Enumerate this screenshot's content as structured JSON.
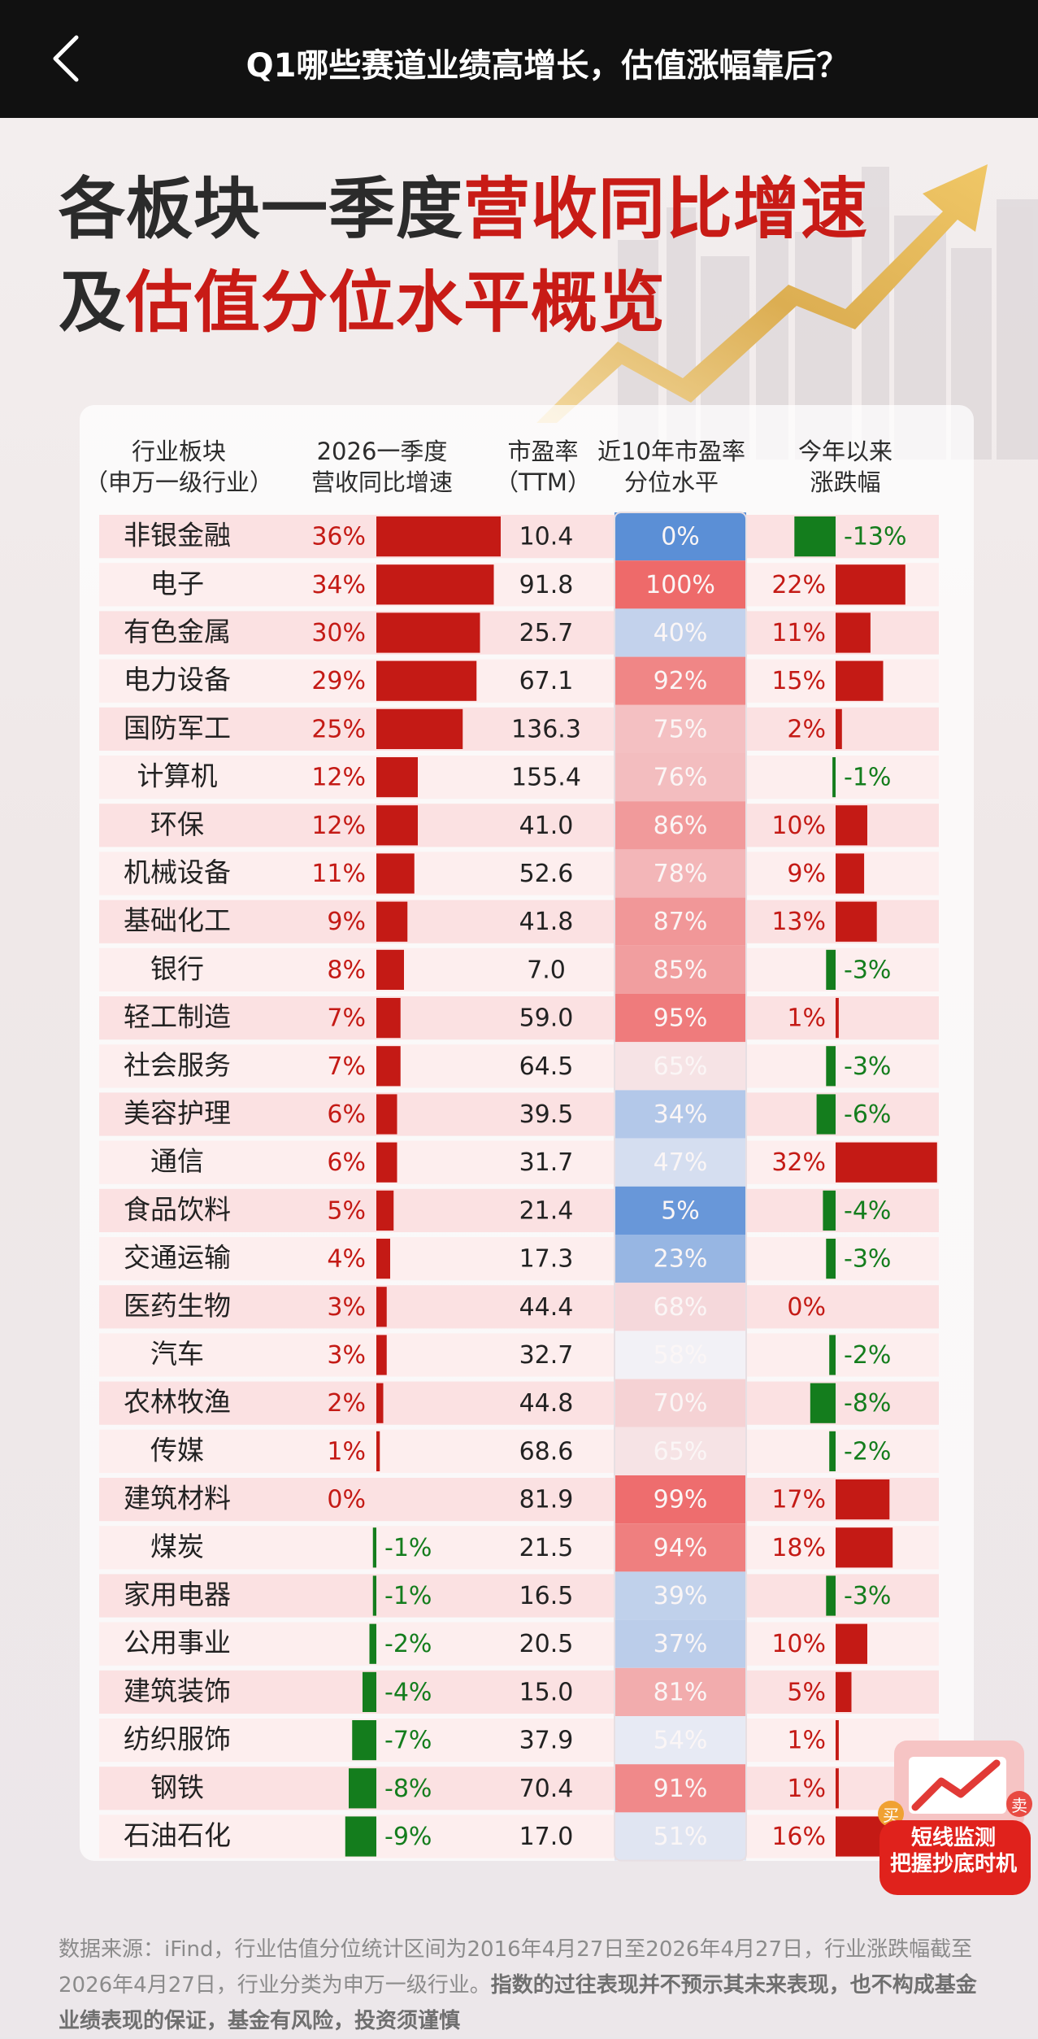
{
  "app": {
    "page_title": "Q1哪些赛道业绩高增长，估值涨幅靠后？",
    "back_icon": "chevron-left-icon"
  },
  "poster": {
    "title_line1_dark": "各板块一季度",
    "title_line1_red": "营收同比增速",
    "title_line2_dark": "及",
    "title_line2_red": "估值分位水平概览",
    "badge_icon": "rising-chart-icon",
    "badge_buy": "买",
    "badge_sell": "卖",
    "badge_line1": "短线监测",
    "badge_line2": "把握抄底时机",
    "footer_plain": "数据来源：iFind，行业估值分位统计区间为2016年4月27日至2026年4月27日，行业涨跌幅截至2026年4月27日，行业分类为申万一级行业。",
    "footer_bold": "指数的过往表现并不预示其未来表现，也不构成基金业绩表现的保证，基金有风险，投资须谨慎"
  },
  "chart_data": {
    "type": "table",
    "columns": [
      {
        "line1": "行业板块",
        "line2": "（申万一级行业）"
      },
      {
        "line1": "2026一季度",
        "line2": "营收同比增速"
      },
      {
        "line1": "市盈率",
        "line2": "（TTM）"
      },
      {
        "line1": "近10年市盈率",
        "line2": "分位水平"
      },
      {
        "line1": "今年以来",
        "line2": "涨跌幅"
      }
    ],
    "rows": [
      {
        "industry": "非银金融",
        "revenue_growth": 36,
        "pe_ttm": "10.4",
        "pe_percentile": 0,
        "ytd_change": -13
      },
      {
        "industry": "电子",
        "revenue_growth": 34,
        "pe_ttm": "91.8",
        "pe_percentile": 100,
        "ytd_change": 22
      },
      {
        "industry": "有色金属",
        "revenue_growth": 30,
        "pe_ttm": "25.7",
        "pe_percentile": 40,
        "ytd_change": 11
      },
      {
        "industry": "电力设备",
        "revenue_growth": 29,
        "pe_ttm": "67.1",
        "pe_percentile": 92,
        "ytd_change": 15
      },
      {
        "industry": "国防军工",
        "revenue_growth": 25,
        "pe_ttm": "136.3",
        "pe_percentile": 75,
        "ytd_change": 2
      },
      {
        "industry": "计算机",
        "revenue_growth": 12,
        "pe_ttm": "155.4",
        "pe_percentile": 76,
        "ytd_change": -1
      },
      {
        "industry": "环保",
        "revenue_growth": 12,
        "pe_ttm": "41.0",
        "pe_percentile": 86,
        "ytd_change": 10
      },
      {
        "industry": "机械设备",
        "revenue_growth": 11,
        "pe_ttm": "52.6",
        "pe_percentile": 78,
        "ytd_change": 9
      },
      {
        "industry": "基础化工",
        "revenue_growth": 9,
        "pe_ttm": "41.8",
        "pe_percentile": 87,
        "ytd_change": 13
      },
      {
        "industry": "银行",
        "revenue_growth": 8,
        "pe_ttm": "7.0",
        "pe_percentile": 85,
        "ytd_change": -3
      },
      {
        "industry": "轻工制造",
        "revenue_growth": 7,
        "pe_ttm": "59.0",
        "pe_percentile": 95,
        "ytd_change": 1
      },
      {
        "industry": "社会服务",
        "revenue_growth": 7,
        "pe_ttm": "64.5",
        "pe_percentile": 65,
        "ytd_change": -3
      },
      {
        "industry": "美容护理",
        "revenue_growth": 6,
        "pe_ttm": "39.5",
        "pe_percentile": 34,
        "ytd_change": -6
      },
      {
        "industry": "通信",
        "revenue_growth": 6,
        "pe_ttm": "31.7",
        "pe_percentile": 47,
        "ytd_change": 32
      },
      {
        "industry": "食品饮料",
        "revenue_growth": 5,
        "pe_ttm": "21.4",
        "pe_percentile": 5,
        "ytd_change": -4
      },
      {
        "industry": "交通运输",
        "revenue_growth": 4,
        "pe_ttm": "17.3",
        "pe_percentile": 23,
        "ytd_change": -3
      },
      {
        "industry": "医药生物",
        "revenue_growth": 3,
        "pe_ttm": "44.4",
        "pe_percentile": 68,
        "ytd_change": 0
      },
      {
        "industry": "汽车",
        "revenue_growth": 3,
        "pe_ttm": "32.7",
        "pe_percentile": 58,
        "ytd_change": -2
      },
      {
        "industry": "农林牧渔",
        "revenue_growth": 2,
        "pe_ttm": "44.8",
        "pe_percentile": 70,
        "ytd_change": -8
      },
      {
        "industry": "传媒",
        "revenue_growth": 1,
        "pe_ttm": "68.6",
        "pe_percentile": 65,
        "ytd_change": -2
      },
      {
        "industry": "建筑材料",
        "revenue_growth": 0,
        "pe_ttm": "81.9",
        "pe_percentile": 99,
        "ytd_change": 17
      },
      {
        "industry": "煤炭",
        "revenue_growth": -1,
        "pe_ttm": "21.5",
        "pe_percentile": 94,
        "ytd_change": 18
      },
      {
        "industry": "家用电器",
        "revenue_growth": -1,
        "pe_ttm": "16.5",
        "pe_percentile": 39,
        "ytd_change": -3
      },
      {
        "industry": "公用事业",
        "revenue_growth": -2,
        "pe_ttm": "20.5",
        "pe_percentile": 37,
        "ytd_change": 10
      },
      {
        "industry": "建筑装饰",
        "revenue_growth": -4,
        "pe_ttm": "15.0",
        "pe_percentile": 81,
        "ytd_change": 5
      },
      {
        "industry": "纺织服饰",
        "revenue_growth": -7,
        "pe_ttm": "37.9",
        "pe_percentile": 54,
        "ytd_change": 1
      },
      {
        "industry": "钢铁",
        "revenue_growth": -8,
        "pe_ttm": "70.4",
        "pe_percentile": 91,
        "ytd_change": 1
      },
      {
        "industry": "石油石化",
        "revenue_growth": -9,
        "pe_ttm": "17.0",
        "pe_percentile": 51,
        "ytd_change": 16
      }
    ],
    "units": {
      "revenue_growth": "%",
      "pe_percentile": "%",
      "ytd_change": "%"
    },
    "colors": {
      "positive": "#c41a15",
      "negative": "#147d1d",
      "percentile_low": "#5b8fd6",
      "percentile_mid": "#f7f4f7",
      "percentile_high": "#ee6a6a"
    }
  }
}
